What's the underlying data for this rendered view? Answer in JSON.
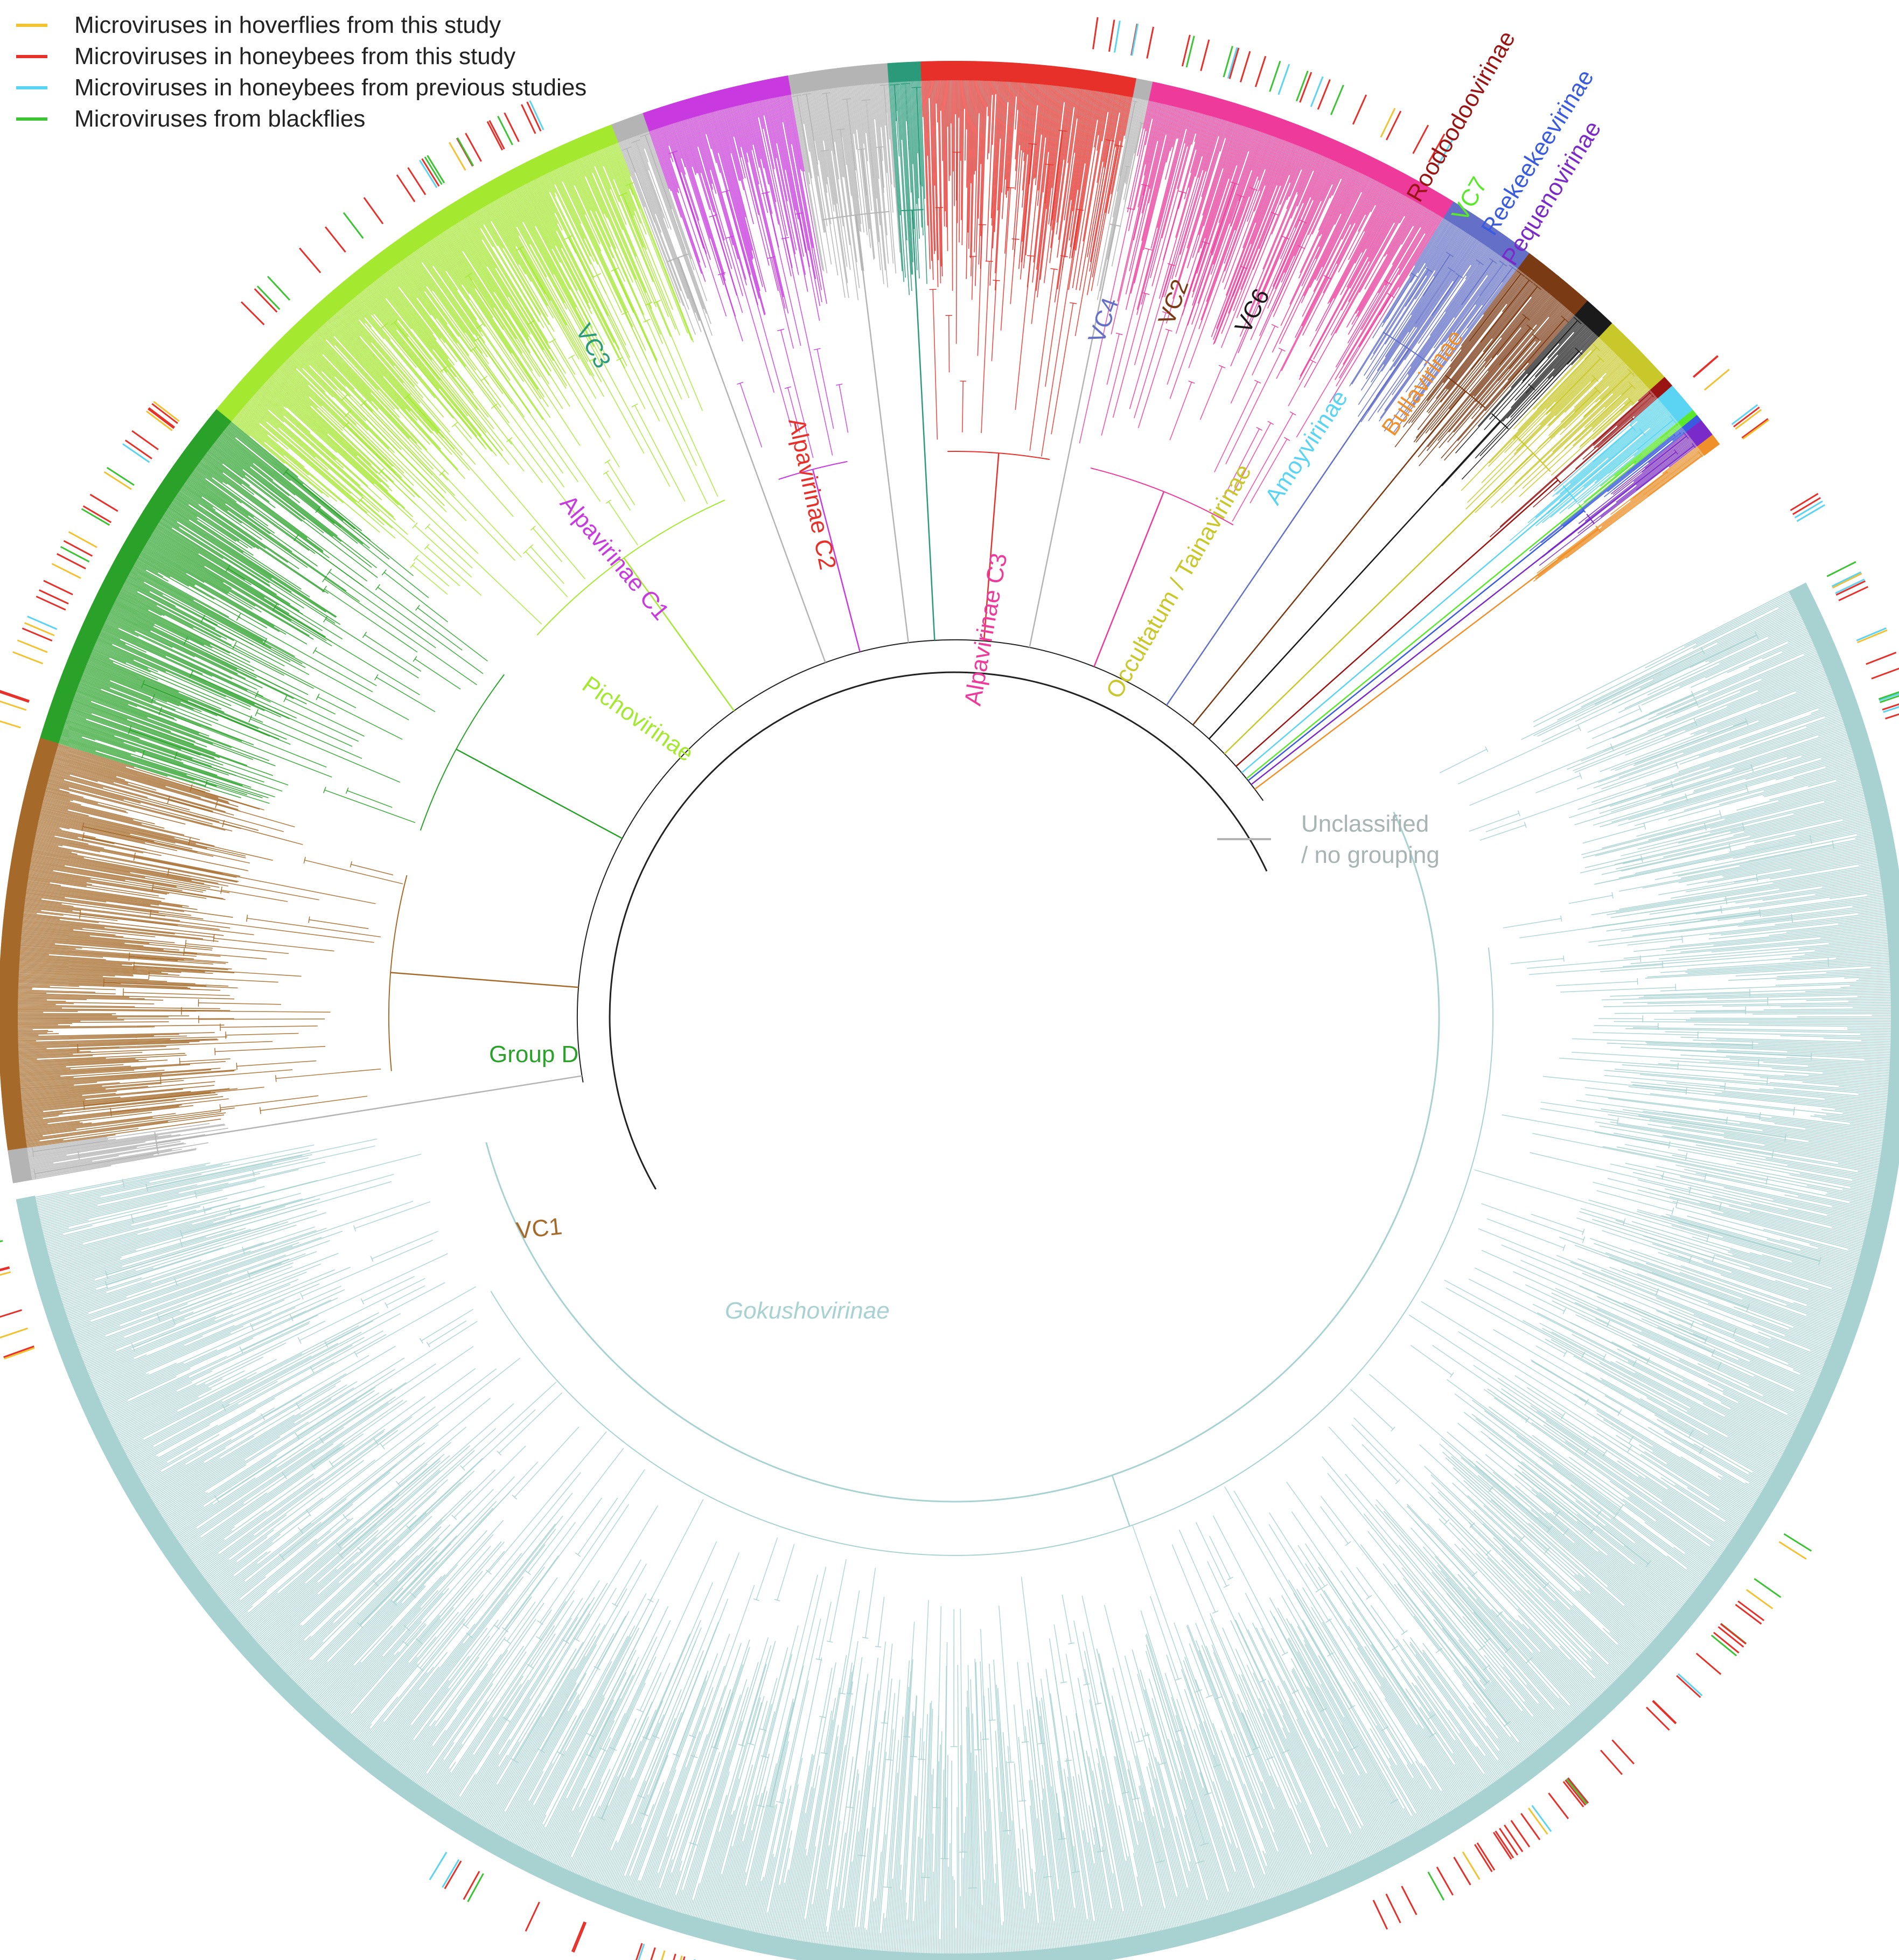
{
  "legend": {
    "items": [
      {
        "label": "Microviruses in hoverflies from this study",
        "color": "#f2c230"
      },
      {
        "label": "Microviruses in honeybees from this study",
        "color": "#e8302a"
      },
      {
        "label": "Microviruses in honeybees from previous studies",
        "color": "#5ad4f2"
      },
      {
        "label": "Microviruses from blackflies",
        "color": "#3cc435"
      }
    ]
  },
  "unclassified": {
    "line1": "Unclassified",
    "line2": "/ no grouping",
    "color": "#a8b4b4"
  },
  "clades": [
    {
      "id": "gray-top",
      "label": "",
      "color": "#b4b4b4",
      "a1": 170.0,
      "a2": 172.0
    },
    {
      "id": "vc1",
      "label": "VC1",
      "color": "#a56a2a",
      "a1": 172.0,
      "a2": 197.0
    },
    {
      "id": "group-d",
      "label": "Group D",
      "color": "#2aa22a",
      "a1": 197.0,
      "a2": 219.5
    },
    {
      "id": "pichovirinae",
      "label": "Pichovirinae",
      "color": "#a4e830",
      "a1": 219.5,
      "a2": 249.0
    },
    {
      "id": "gray-a",
      "label": "",
      "color": "#b4b4b4",
      "a1": 249.0,
      "a2": 251.0
    },
    {
      "id": "alp-c1",
      "label": "Alpavirinae C1",
      "color": "#c83ae0",
      "a1": 251.0,
      "a2": 260.0
    },
    {
      "id": "gray-b",
      "label": "",
      "color": "#b4b4b4",
      "a1": 260.0,
      "a2": 266.0
    },
    {
      "id": "vc3",
      "label": "VC3",
      "color": "#2a9a7a",
      "a1": 266.0,
      "a2": 268.0
    },
    {
      "id": "alp-c2",
      "label": "Alpavirinae C2",
      "color": "#e8302a",
      "a1": 268.0,
      "a2": 281.0
    },
    {
      "id": "gray-c",
      "label": "",
      "color": "#b4b4b4",
      "a1": 281.0,
      "a2": 282.0
    },
    {
      "id": "alp-c3",
      "label": "Alpavirinae C3",
      "color": "#ee3a9a",
      "a1": 282.0,
      "a2": 301.5
    },
    {
      "id": "vc4",
      "label": "VC4",
      "color": "#6470c8",
      "a1": 301.5,
      "a2": 307.0
    },
    {
      "id": "vc2",
      "label": "VC2",
      "color": "#7a3a14",
      "a1": 307.0,
      "a2": 311.5
    },
    {
      "id": "vc6",
      "label": "VC6",
      "color": "#1a1a1a",
      "a1": 311.5,
      "a2": 313.5
    },
    {
      "id": "occ-tain",
      "label": "Occultatum / Tainavirinae",
      "color": "#c8c82a",
      "a1": 313.5,
      "a2": 318.0
    },
    {
      "id": "roodoodoo",
      "label": "Roodoodoovirinae",
      "color": "#9a1414",
      "a1": 318.0,
      "a2": 318.7
    },
    {
      "id": "amoyvirinae",
      "label": "Amoyvirinae",
      "color": "#5ad4f2",
      "a1": 318.7,
      "a2": 320.6
    },
    {
      "id": "vc7",
      "label": "VC7",
      "color": "#5ae82a",
      "a1": 320.6,
      "a2": 321.0
    },
    {
      "id": "reekeekee",
      "label": "Reekeekeevirinae",
      "color": "#3a5ae0",
      "a1": 321.0,
      "a2": 321.4
    },
    {
      "id": "pequeno",
      "label": "Pequenovirinae",
      "color": "#7a2ac8",
      "a1": 321.4,
      "a2": 322.5
    },
    {
      "id": "bullavirinae",
      "label": "Bullavirinae",
      "color": "#f0902a",
      "a1": 322.5,
      "a2": 323.2
    },
    {
      "id": "gokusho",
      "label": "Gokushovirinae",
      "color": "#a8d2d2",
      "a1": 333.0,
      "a2": 529.0
    }
  ]
}
